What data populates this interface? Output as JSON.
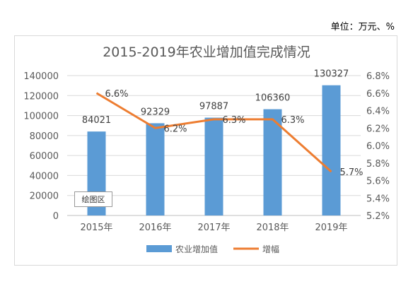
{
  "unit_note": "单位：万元、%",
  "plot_area_tag": "绘图区",
  "chart_data": {
    "type": "bar",
    "title": "2015-2019年农业增加值完成情况",
    "categories": [
      "2015年",
      "2016年",
      "2017年",
      "2018年",
      "2019年"
    ],
    "series": [
      {
        "name": "农业增加值",
        "type": "bar",
        "axis": "left",
        "values": [
          84021,
          92329,
          97887,
          106360,
          130327
        ],
        "labels": [
          "84021",
          "92329",
          "97887",
          "106360",
          "130327"
        ],
        "color": "#5b9bd5"
      },
      {
        "name": "增幅",
        "type": "line",
        "axis": "right",
        "values": [
          6.6,
          6.2,
          6.3,
          6.3,
          5.7
        ],
        "labels": [
          "6.6%",
          "6.2%",
          "6.3%",
          "6.3%",
          "5.7%"
        ],
        "color": "#ed7d31"
      }
    ],
    "left_axis": {
      "min": 0,
      "max": 140000,
      "step": 20000,
      "ticks": [
        "0",
        "20000",
        "40000",
        "60000",
        "80000",
        "100000",
        "120000",
        "140000"
      ]
    },
    "right_axis": {
      "min": 5.2,
      "max": 6.8,
      "step": 0.2,
      "ticks": [
        "5.2%",
        "5.4%",
        "5.6%",
        "5.8%",
        "6.0%",
        "6.2%",
        "6.4%",
        "6.6%",
        "6.8%"
      ]
    },
    "grid": true,
    "legend": "bottom"
  }
}
